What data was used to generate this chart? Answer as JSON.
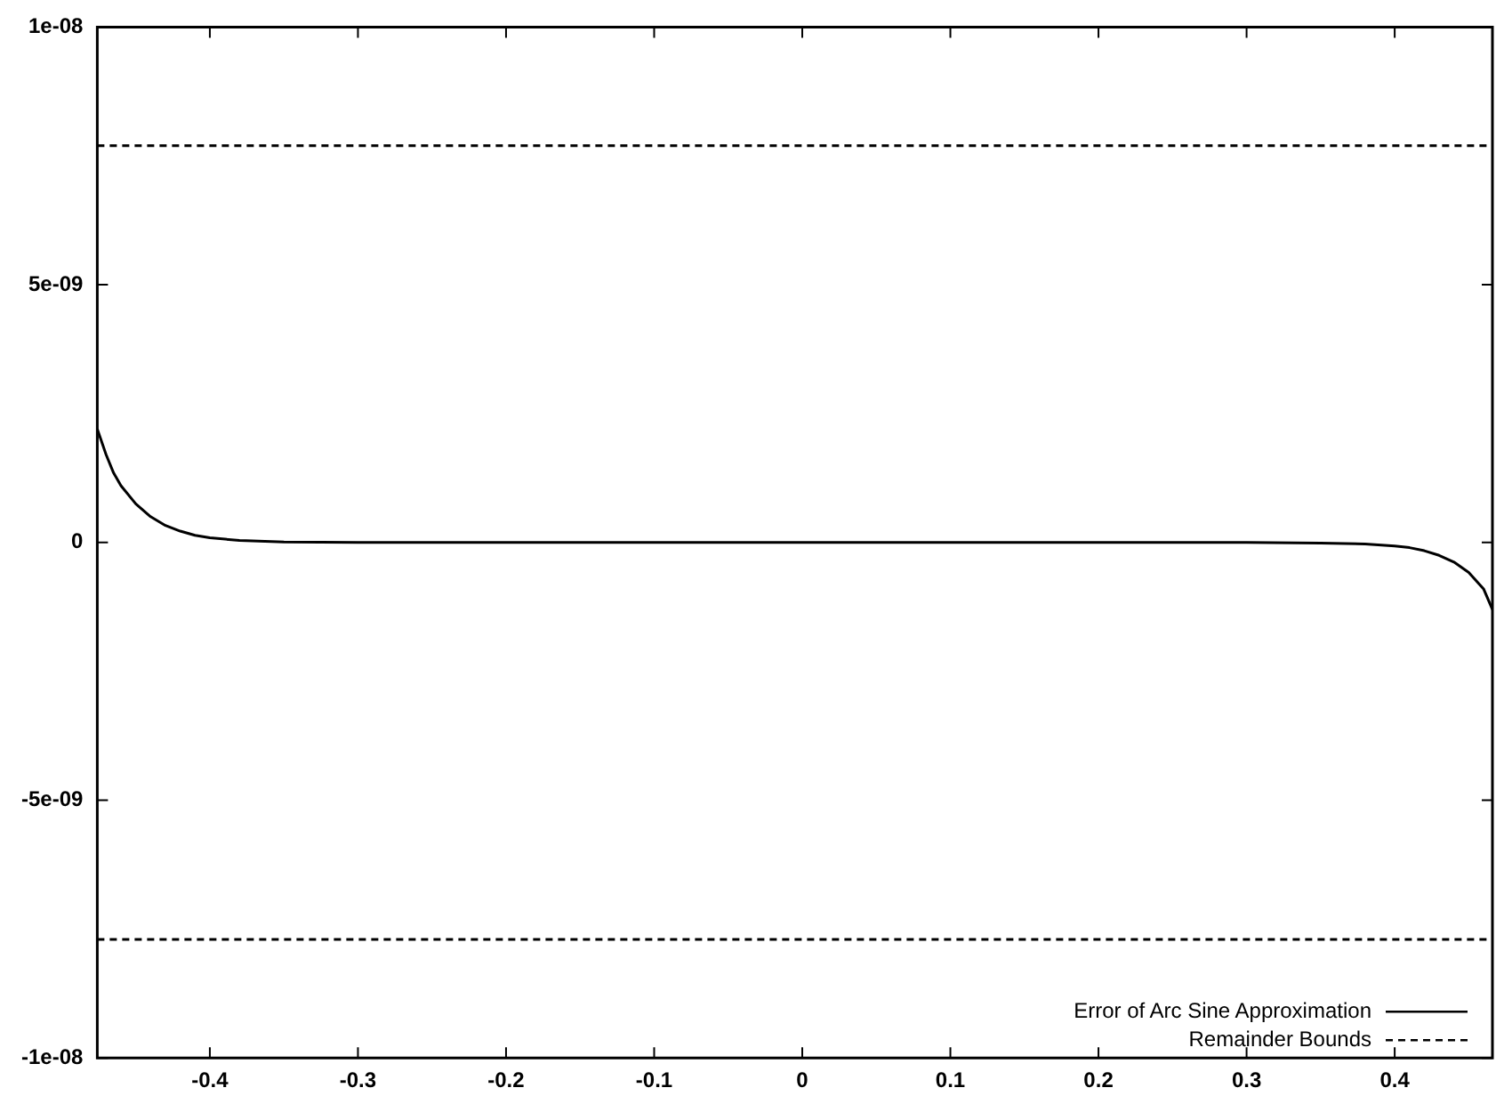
{
  "chart_data": {
    "type": "line",
    "xlim": [
      -0.476,
      0.466
    ],
    "xticks": [
      -0.4,
      -0.3,
      -0.2,
      -0.1,
      0,
      0.1,
      0.2,
      0.3,
      0.4
    ],
    "ylim": [
      -1e-08,
      1e-08
    ],
    "yticks": [
      {
        "value": -1e-08,
        "label": "-1e-08"
      },
      {
        "value": -5e-09,
        "label": "-5e-09"
      },
      0,
      {
        "value": 5e-09,
        "label": "5e-09"
      },
      {
        "value": 1e-08,
        "label": "1e-08"
      }
    ],
    "grid": false,
    "legend": "bottom right",
    "marker": "none",
    "series": [
      {
        "name": "Error of Arc Sine Approximation",
        "color": "#000000",
        "line_style": "solid",
        "x": [
          -0.476,
          -0.47,
          -0.465,
          -0.46,
          -0.45,
          -0.44,
          -0.43,
          -0.42,
          -0.41,
          -0.4,
          -0.38,
          -0.35,
          -0.3,
          -0.2,
          0,
          0.2,
          0.3,
          0.35,
          0.38,
          0.4,
          0.41,
          0.42,
          0.43,
          0.44,
          0.45,
          0.46,
          0.466
        ],
        "values": [
          2.2e-09,
          1.7e-09,
          1.35e-09,
          1.1e-09,
          7.5e-10,
          5e-10,
          3.3e-10,
          2.2e-10,
          1.4e-10,
          9e-11,
          4e-11,
          1e-11,
          0,
          0,
          0,
          0,
          0,
          -1e-11,
          -3e-11,
          -7e-11,
          -1e-10,
          -1.6e-10,
          -2.5e-10,
          -3.8e-10,
          -5.8e-10,
          -9e-10,
          -1.3e-09
        ]
      },
      {
        "name": "Remainder Bounds",
        "color": "#000000",
        "line_style": "dashed",
        "x": [
          -0.476,
          0.466
        ],
        "values": [
          7.7e-09,
          7.7e-09
        ]
      },
      {
        "color": "#000000",
        "line_style": "dashed",
        "x": [
          -0.476,
          0.466
        ],
        "values": [
          -7.7e-09,
          -7.7e-09
        ]
      }
    ]
  }
}
